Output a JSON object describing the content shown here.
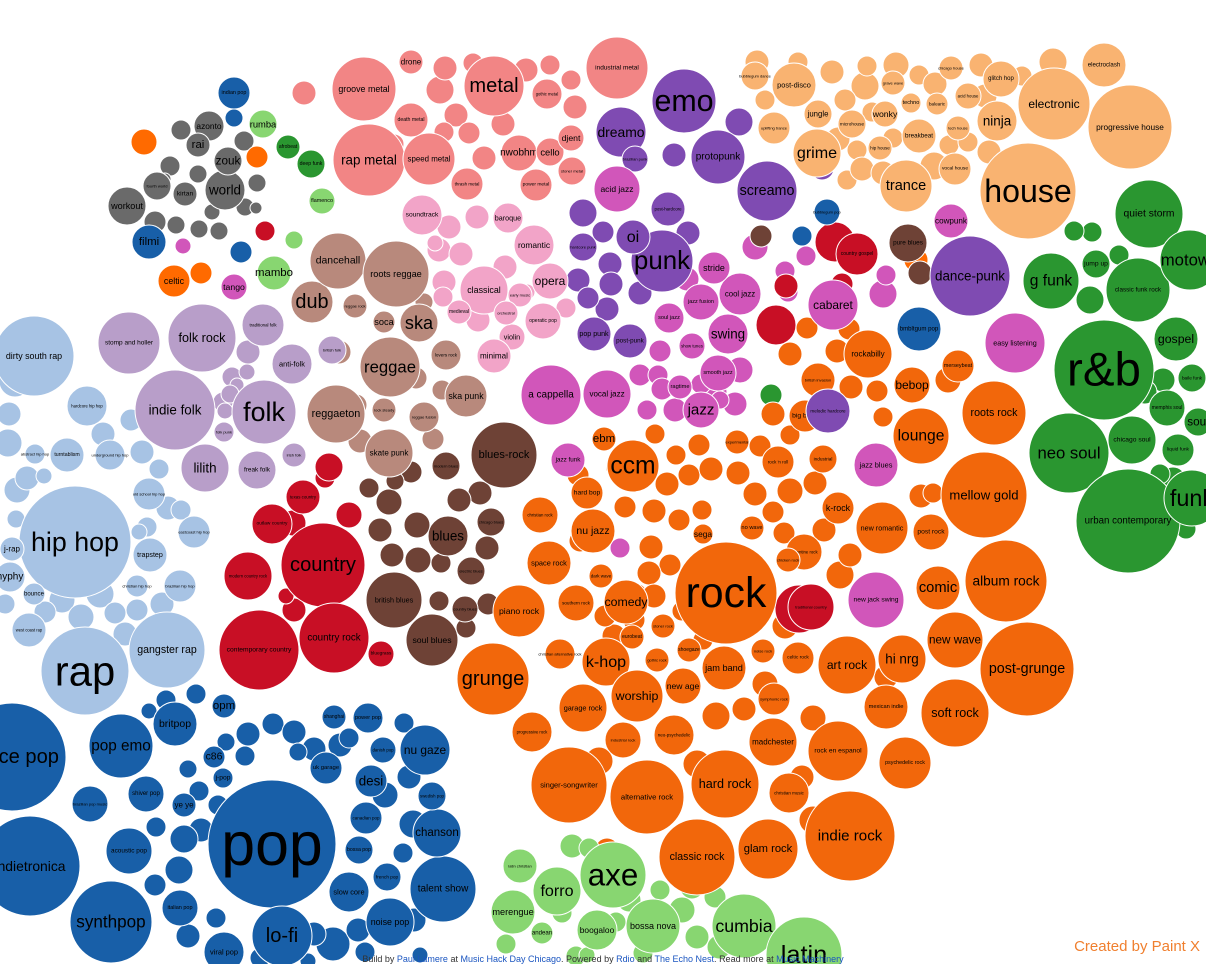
{
  "clusters": {
    "steelblue": "#a7c3e4",
    "violet": "#b89ec9",
    "brown": "#6e4236",
    "taupe": "#b8897c",
    "red": "#c80f25",
    "salmon": "#f28585",
    "pink": "#f2a4c8",
    "magenta": "#d156ba",
    "purple": "#7f4bb2",
    "orange": "#f2670b",
    "peach": "#f9b371",
    "green": "#2a9630",
    "lightgreen": "#88d671",
    "navy": "#185fa8",
    "gray": "#6a6a6a",
    "vivid": "#ff6a00"
  },
  "genres": [
    {
      "label": "r&b",
      "cluster": "green"
    },
    {
      "label": "neo soul",
      "cluster": "green"
    },
    {
      "label": "urban contemporary",
      "cluster": "green"
    },
    {
      "label": "g funk",
      "cluster": "green"
    },
    {
      "label": "quiet storm",
      "cluster": "green"
    },
    {
      "label": "classic funk rock",
      "cluster": "green"
    },
    {
      "label": "jump up",
      "cluster": "green"
    },
    {
      "label": "motown",
      "cluster": "green"
    },
    {
      "label": "gospel",
      "cluster": "green"
    },
    {
      "label": "chicago soul",
      "cluster": "green"
    },
    {
      "label": "memphis soul",
      "cluster": "green"
    },
    {
      "label": "liquid funk",
      "cluster": "green"
    },
    {
      "label": "baile funk",
      "cluster": "green"
    },
    {
      "label": "funk",
      "cluster": "green"
    },
    {
      "label": "soul",
      "cluster": "green"
    },
    {
      "label": "house",
      "cluster": "peach"
    },
    {
      "label": "electronic",
      "cluster": "peach"
    },
    {
      "label": "progressive house",
      "cluster": "peach"
    },
    {
      "label": "electroclash",
      "cluster": "peach"
    },
    {
      "label": "trance",
      "cluster": "peach"
    },
    {
      "label": "grime",
      "cluster": "peach"
    },
    {
      "label": "ninja",
      "cluster": "peach"
    },
    {
      "label": "glitch hop",
      "cluster": "peach"
    },
    {
      "label": "post-disco",
      "cluster": "peach"
    },
    {
      "label": "breakbeat",
      "cluster": "peach"
    },
    {
      "label": "uplifting trance",
      "cluster": "peach"
    },
    {
      "label": "vocal house",
      "cluster": "peach"
    },
    {
      "label": "jungle",
      "cluster": "peach"
    },
    {
      "label": "microhouse",
      "cluster": "peach"
    },
    {
      "label": "wonky",
      "cluster": "peach"
    },
    {
      "label": "hip house",
      "cluster": "peach"
    },
    {
      "label": "techno",
      "cluster": "peach"
    },
    {
      "label": "tech house",
      "cluster": "peach"
    },
    {
      "label": "acid house",
      "cluster": "peach"
    },
    {
      "label": "balearic",
      "cluster": "peach"
    },
    {
      "label": "chicago house",
      "cluster": "peach"
    },
    {
      "label": "grave wave",
      "cluster": "peach"
    },
    {
      "label": "bubblegum dance",
      "cluster": "peach"
    },
    {
      "label": "rock",
      "cluster": "orange"
    },
    {
      "label": "grunge",
      "cluster": "orange"
    },
    {
      "label": "ccm",
      "cluster": "orange"
    },
    {
      "label": "indie rock",
      "cluster": "orange"
    },
    {
      "label": "hard rock",
      "cluster": "orange"
    },
    {
      "label": "mellow gold",
      "cluster": "orange"
    },
    {
      "label": "album rock",
      "cluster": "orange"
    },
    {
      "label": "post-grunge",
      "cluster": "orange"
    },
    {
      "label": "soft rock",
      "cluster": "orange"
    },
    {
      "label": "new wave",
      "cluster": "orange"
    },
    {
      "label": "art rock",
      "cluster": "orange"
    },
    {
      "label": "hi nrg",
      "cluster": "orange"
    },
    {
      "label": "comic",
      "cluster": "orange"
    },
    {
      "label": "roots rock",
      "cluster": "orange"
    },
    {
      "label": "lounge",
      "cluster": "orange"
    },
    {
      "label": "bebop",
      "cluster": "orange"
    },
    {
      "label": "rockabilly",
      "cluster": "orange"
    },
    {
      "label": "big band",
      "cluster": "orange"
    },
    {
      "label": "piano rock",
      "cluster": "orange"
    },
    {
      "label": "space rock",
      "cluster": "orange"
    },
    {
      "label": "nu jazz",
      "cluster": "orange"
    },
    {
      "label": "hard bop",
      "cluster": "orange"
    },
    {
      "label": "christian rock",
      "cluster": "orange"
    },
    {
      "label": "comedy",
      "cluster": "orange"
    },
    {
      "label": "southern rock",
      "cluster": "orange"
    },
    {
      "label": "k-hop",
      "cluster": "orange"
    },
    {
      "label": "worship",
      "cluster": "orange"
    },
    {
      "label": "garage rock",
      "cluster": "orange"
    },
    {
      "label": "new age",
      "cluster": "orange"
    },
    {
      "label": "jam band",
      "cluster": "orange"
    },
    {
      "label": "alternative rock",
      "cluster": "orange"
    },
    {
      "label": "singer-songwriter",
      "cluster": "orange"
    },
    {
      "label": "classic rock",
      "cluster": "orange"
    },
    {
      "label": "glam rock",
      "cluster": "orange"
    },
    {
      "label": "madchester",
      "cluster": "orange"
    },
    {
      "label": "rock en espanol",
      "cluster": "orange"
    },
    {
      "label": "mexican indie",
      "cluster": "orange"
    },
    {
      "label": "psychedelic rock",
      "cluster": "orange"
    },
    {
      "label": "christian music",
      "cluster": "orange"
    },
    {
      "label": "progressive rock",
      "cluster": "orange"
    },
    {
      "label": "industrial rock",
      "cluster": "orange"
    },
    {
      "label": "neo-psychedelic",
      "cluster": "orange"
    },
    {
      "label": "celtic rock",
      "cluster": "orange"
    },
    {
      "label": "symphonic rock",
      "cluster": "orange"
    },
    {
      "label": "new romantic",
      "cluster": "orange"
    },
    {
      "label": "post rock",
      "cluster": "orange"
    },
    {
      "label": "argentine rock",
      "cluster": "orange"
    },
    {
      "label": "k-rock",
      "cluster": "orange"
    },
    {
      "label": "rock 'n roll",
      "cluster": "orange"
    },
    {
      "label": "industrial",
      "cluster": "orange"
    },
    {
      "label": "chicken rock",
      "cluster": "orange"
    },
    {
      "label": "no wave",
      "cluster": "orange"
    },
    {
      "label": "sega",
      "cluster": "orange"
    },
    {
      "label": "ebm",
      "cluster": "orange"
    },
    {
      "label": "experimental",
      "cluster": "orange"
    },
    {
      "label": "british invasion",
      "cluster": "orange"
    },
    {
      "label": "merseybeat",
      "cluster": "orange"
    },
    {
      "label": "stoner rock",
      "cluster": "orange"
    },
    {
      "label": "gothic rock",
      "cluster": "orange"
    },
    {
      "label": "shoegaze",
      "cluster": "orange"
    },
    {
      "label": "noise rock",
      "cluster": "orange"
    },
    {
      "label": "dark wave",
      "cluster": "orange"
    },
    {
      "label": "eurobeat",
      "cluster": "orange"
    },
    {
      "label": "christian alternative rock",
      "cluster": "orange"
    },
    {
      "label": "pop",
      "cluster": "navy"
    },
    {
      "label": "lo-fi",
      "cluster": "navy"
    },
    {
      "label": "synthpop",
      "cluster": "navy"
    },
    {
      "label": "indietronica",
      "cluster": "navy"
    },
    {
      "label": "dance pop",
      "cluster": "navy"
    },
    {
      "label": "pop emo",
      "cluster": "navy"
    },
    {
      "label": "britpop",
      "cluster": "navy"
    },
    {
      "label": "nu gaze",
      "cluster": "navy"
    },
    {
      "label": "desi",
      "cluster": "navy"
    },
    {
      "label": "talent show",
      "cluster": "navy"
    },
    {
      "label": "noise pop",
      "cluster": "navy"
    },
    {
      "label": "slow core",
      "cluster": "navy"
    },
    {
      "label": "chanson",
      "cluster": "navy"
    },
    {
      "label": "acoustic pop",
      "cluster": "navy"
    },
    {
      "label": "shiver pop",
      "cluster": "navy"
    },
    {
      "label": "italian pop",
      "cluster": "navy"
    },
    {
      "label": "opm",
      "cluster": "navy"
    },
    {
      "label": "c86",
      "cluster": "navy"
    },
    {
      "label": "j-pop",
      "cluster": "navy"
    },
    {
      "label": "ye ye",
      "cluster": "navy"
    },
    {
      "label": "uk garage",
      "cluster": "navy"
    },
    {
      "label": "power pop",
      "cluster": "navy"
    },
    {
      "label": "danish pop",
      "cluster": "navy"
    },
    {
      "label": "swedish pop",
      "cluster": "navy"
    },
    {
      "label": "canadian pop",
      "cluster": "navy"
    },
    {
      "label": "french pop",
      "cluster": "navy"
    },
    {
      "label": "bossa pop",
      "cluster": "navy"
    },
    {
      "label": "brazilian pop music",
      "cluster": "navy"
    },
    {
      "label": "viral pop",
      "cluster": "navy"
    },
    {
      "label": "shanghai",
      "cluster": "navy"
    },
    {
      "label": "indian pop",
      "cluster": "navy"
    },
    {
      "label": "filmi",
      "cluster": "navy"
    },
    {
      "label": "bubblegum pop",
      "cluster": "navy"
    },
    {
      "label": "bmbltgum pop",
      "cluster": "navy"
    },
    {
      "label": "rap",
      "cluster": "steelblue"
    },
    {
      "label": "hip hop",
      "cluster": "steelblue"
    },
    {
      "label": "gangster rap",
      "cluster": "steelblue"
    },
    {
      "label": "dirty south rap",
      "cluster": "steelblue"
    },
    {
      "label": "trapstep",
      "cluster": "steelblue"
    },
    {
      "label": "turntablism",
      "cluster": "steelblue"
    },
    {
      "label": "hardcore hip hop",
      "cluster": "steelblue"
    },
    {
      "label": "underground hip hop",
      "cluster": "steelblue"
    },
    {
      "label": "old school hip hop",
      "cluster": "steelblue"
    },
    {
      "label": "eastcoast hip hop",
      "cluster": "steelblue"
    },
    {
      "label": "brazilian hip hop",
      "cluster": "steelblue"
    },
    {
      "label": "west coast rap",
      "cluster": "steelblue"
    },
    {
      "label": "bounce",
      "cluster": "steelblue"
    },
    {
      "label": "hyphy",
      "cluster": "steelblue"
    },
    {
      "label": "j-rap",
      "cluster": "steelblue"
    },
    {
      "label": "abstract hip hop",
      "cluster": "steelblue"
    },
    {
      "label": "christian hip hop",
      "cluster": "steelblue"
    },
    {
      "label": "folk",
      "cluster": "violet"
    },
    {
      "label": "folk rock",
      "cluster": "violet"
    },
    {
      "label": "indie folk",
      "cluster": "violet"
    },
    {
      "label": "lilith",
      "cluster": "violet"
    },
    {
      "label": "stomp and holler",
      "cluster": "violet"
    },
    {
      "label": "anti-folk",
      "cluster": "violet"
    },
    {
      "label": "freak folk",
      "cluster": "violet"
    },
    {
      "label": "traditional folk",
      "cluster": "violet"
    },
    {
      "label": "british folk",
      "cluster": "violet"
    },
    {
      "label": "folk punk",
      "cluster": "violet"
    },
    {
      "label": "irish folk",
      "cluster": "violet"
    },
    {
      "label": "reggae",
      "cluster": "taupe"
    },
    {
      "label": "reggaeton",
      "cluster": "taupe"
    },
    {
      "label": "dub",
      "cluster": "taupe"
    },
    {
      "label": "ska",
      "cluster": "taupe"
    },
    {
      "label": "dancehall",
      "cluster": "taupe"
    },
    {
      "label": "roots reggae",
      "cluster": "taupe"
    },
    {
      "label": "ska punk",
      "cluster": "taupe"
    },
    {
      "label": "skate punk",
      "cluster": "taupe"
    },
    {
      "label": "soca",
      "cluster": "taupe"
    },
    {
      "label": "reggae rock",
      "cluster": "taupe"
    },
    {
      "label": "lovers rock",
      "cluster": "taupe"
    },
    {
      "label": "rock steady",
      "cluster": "taupe"
    },
    {
      "label": "reggae fusion",
      "cluster": "taupe"
    },
    {
      "label": "blues-rock",
      "cluster": "brown"
    },
    {
      "label": "blues",
      "cluster": "brown"
    },
    {
      "label": "british blues",
      "cluster": "brown"
    },
    {
      "label": "soul blues",
      "cluster": "brown"
    },
    {
      "label": "modern blues",
      "cluster": "brown"
    },
    {
      "label": "country blues",
      "cluster": "brown"
    },
    {
      "label": "chicago blues",
      "cluster": "brown"
    },
    {
      "label": "electric blues",
      "cluster": "brown"
    },
    {
      "label": "pure blues",
      "cluster": "brown"
    },
    {
      "label": "country",
      "cluster": "red"
    },
    {
      "label": "country rock",
      "cluster": "red"
    },
    {
      "label": "contemporary country",
      "cluster": "red"
    },
    {
      "label": "modern country rock",
      "cluster": "red"
    },
    {
      "label": "outlaw country",
      "cluster": "red"
    },
    {
      "label": "texas country",
      "cluster": "red"
    },
    {
      "label": "bluegrass",
      "cluster": "red"
    },
    {
      "label": "traditional country",
      "cluster": "red"
    },
    {
      "label": "country gospel",
      "cluster": "red"
    },
    {
      "label": "metal",
      "cluster": "salmon"
    },
    {
      "label": "rap metal",
      "cluster": "salmon"
    },
    {
      "label": "groove metal",
      "cluster": "salmon"
    },
    {
      "label": "speed metal",
      "cluster": "salmon"
    },
    {
      "label": "death metal",
      "cluster": "salmon"
    },
    {
      "label": "thrash metal",
      "cluster": "salmon"
    },
    {
      "label": "power metal",
      "cluster": "salmon"
    },
    {
      "label": "nwobhm",
      "cluster": "salmon"
    },
    {
      "label": "cello",
      "cluster": "salmon"
    },
    {
      "label": "djent",
      "cluster": "salmon"
    },
    {
      "label": "stoner metal",
      "cluster": "salmon"
    },
    {
      "label": "gothic metal",
      "cluster": "salmon"
    },
    {
      "label": "industrial metal",
      "cluster": "salmon"
    },
    {
      "label": "drone",
      "cluster": "salmon"
    },
    {
      "label": "classical",
      "cluster": "pink"
    },
    {
      "label": "opera",
      "cluster": "pink"
    },
    {
      "label": "romantic",
      "cluster": "pink"
    },
    {
      "label": "violin",
      "cluster": "pink"
    },
    {
      "label": "minimal",
      "cluster": "pink"
    },
    {
      "label": "soundtrack",
      "cluster": "pink"
    },
    {
      "label": "baroque",
      "cluster": "pink"
    },
    {
      "label": "operatic pop",
      "cluster": "pink"
    },
    {
      "label": "early music",
      "cluster": "pink"
    },
    {
      "label": "orchestral",
      "cluster": "pink"
    },
    {
      "label": "medieval",
      "cluster": "pink"
    },
    {
      "label": "emo",
      "cluster": "purple"
    },
    {
      "label": "punk",
      "cluster": "purple"
    },
    {
      "label": "screamo",
      "cluster": "purple"
    },
    {
      "label": "dreamo",
      "cluster": "purple"
    },
    {
      "label": "protopunk",
      "cluster": "purple"
    },
    {
      "label": "oi",
      "cluster": "purple"
    },
    {
      "label": "post-punk",
      "cluster": "purple"
    },
    {
      "label": "dance-punk",
      "cluster": "purple"
    },
    {
      "label": "post-hardcore",
      "cluster": "purple"
    },
    {
      "label": "brazilian punk",
      "cluster": "purple"
    },
    {
      "label": "hardcore punk",
      "cluster": "purple"
    },
    {
      "label": "pop punk",
      "cluster": "purple"
    },
    {
      "label": "melodic hardcore",
      "cluster": "purple"
    },
    {
      "label": "jazz",
      "cluster": "magenta"
    },
    {
      "label": "a cappella",
      "cluster": "magenta"
    },
    {
      "label": "vocal jazz",
      "cluster": "magenta"
    },
    {
      "label": "swing",
      "cluster": "magenta"
    },
    {
      "label": "cool jazz",
      "cluster": "magenta"
    },
    {
      "label": "stride",
      "cluster": "magenta"
    },
    {
      "label": "acid jazz",
      "cluster": "magenta"
    },
    {
      "label": "jazz funk",
      "cluster": "magenta"
    },
    {
      "label": "cabaret",
      "cluster": "magenta"
    },
    {
      "label": "new jack swing",
      "cluster": "magenta"
    },
    {
      "label": "easy listening",
      "cluster": "magenta"
    },
    {
      "label": "jazz blues",
      "cluster": "magenta"
    },
    {
      "label": "cowpunk",
      "cluster": "magenta"
    },
    {
      "label": "soul jazz",
      "cluster": "magenta"
    },
    {
      "label": "jazz fusion",
      "cluster": "magenta"
    },
    {
      "label": "smooth jazz",
      "cluster": "magenta"
    },
    {
      "label": "ragtime",
      "cluster": "magenta"
    },
    {
      "label": "show tunes",
      "cluster": "magenta"
    },
    {
      "label": "axe",
      "cluster": "lightgreen"
    },
    {
      "label": "forro",
      "cluster": "lightgreen"
    },
    {
      "label": "cumbia",
      "cluster": "lightgreen"
    },
    {
      "label": "bossa nova",
      "cluster": "lightgreen"
    },
    {
      "label": "boogaloo",
      "cluster": "lightgreen"
    },
    {
      "label": "merengue",
      "cluster": "lightgreen"
    },
    {
      "label": "latin christian",
      "cluster": "lightgreen"
    },
    {
      "label": "andean",
      "cluster": "lightgreen"
    },
    {
      "label": "rumba",
      "cluster": "lightgreen"
    },
    {
      "label": "mambo",
      "cluster": "lightgreen"
    },
    {
      "label": "flamenco",
      "cluster": "lightgreen"
    },
    {
      "label": "latin",
      "cluster": "lightgreen"
    },
    {
      "label": "world",
      "cluster": "gray"
    },
    {
      "label": "workout",
      "cluster": "gray"
    },
    {
      "label": "zouk",
      "cluster": "gray"
    },
    {
      "label": "azonto",
      "cluster": "gray"
    },
    {
      "label": "kirtan",
      "cluster": "gray"
    },
    {
      "label": "rai",
      "cluster": "gray"
    },
    {
      "label": "fourth world",
      "cluster": "gray"
    },
    {
      "label": "afrobeat",
      "cluster": "green"
    },
    {
      "label": "deep funk",
      "cluster": "green"
    },
    {
      "label": "celtic",
      "cluster": "vivid"
    },
    {
      "label": "tango",
      "cluster": "magenta"
    }
  ],
  "footer": {
    "prefix": "Build by",
    "author": "Paul Lamere",
    "at": "at",
    "event": "Music Hack Day Chicago",
    "powered": "Powered by",
    "rdio": "Rdio",
    "and": "and",
    "echonest": "The Echo Nest",
    "readmore": "Read more at",
    "machinery": "Music Machinery"
  },
  "watermark": "Created by Paint X"
}
